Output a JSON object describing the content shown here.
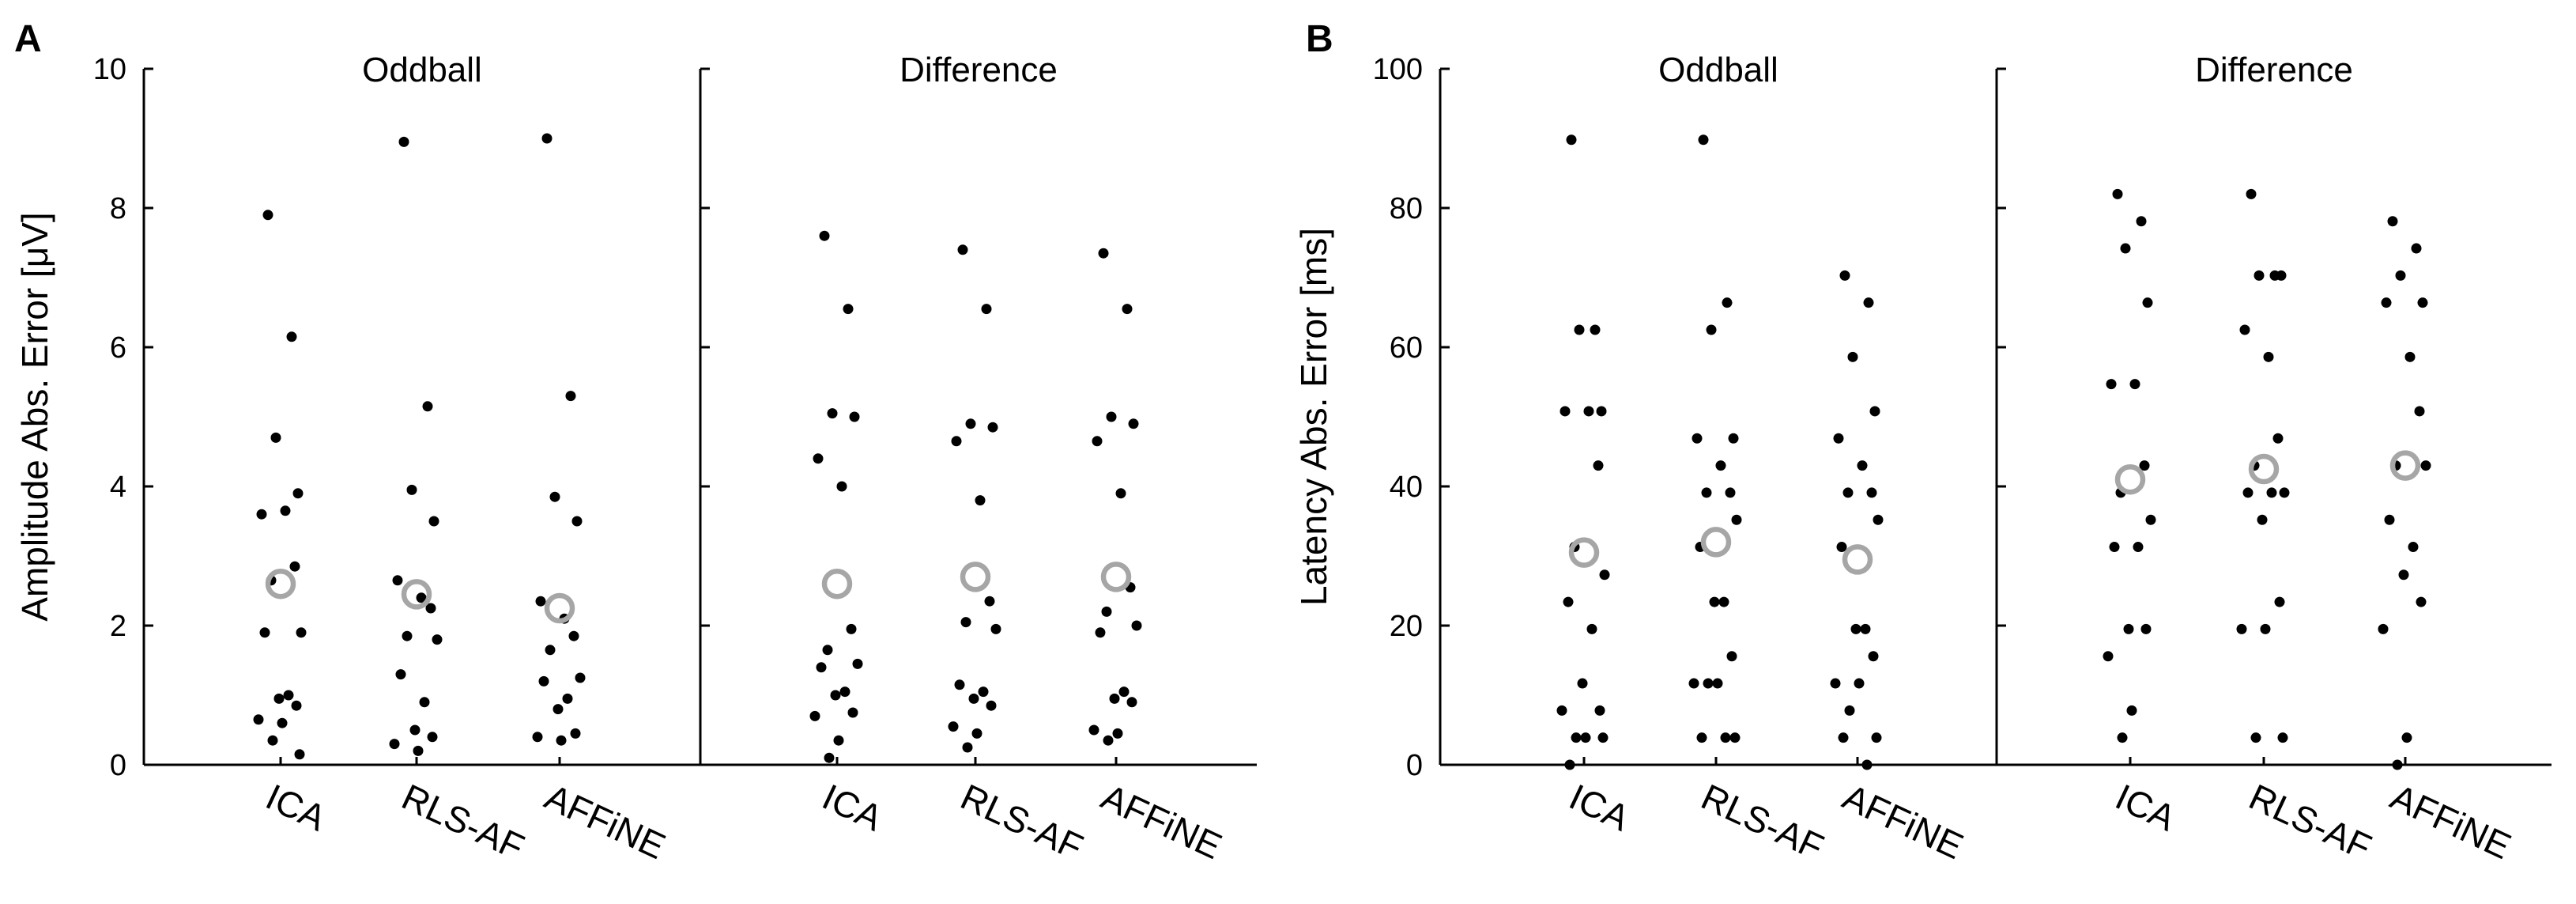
{
  "colors": {
    "individual": "#000000",
    "median": "#a6a6a6",
    "axis": "#000000"
  },
  "chart_data": [
    {
      "type": "scatter",
      "panel_label": "A",
      "ylabel": "Amplitude Abs. Error [μV]",
      "ylim": [
        0,
        10
      ],
      "yticks": [
        "0",
        "2",
        "4",
        "6",
        "8",
        "10"
      ],
      "categories": [
        "ICA",
        "RLS-AF",
        "AFFiNE"
      ],
      "subplots": [
        {
          "title": "Oddball",
          "series": [
            {
              "name": "ICA",
              "values": [
                7.9,
                6.15,
                4.7,
                3.9,
                3.6,
                3.65,
                2.85,
                2.65,
                1.9,
                1.9,
                1.0,
                0.95,
                0.85,
                0.65,
                0.6,
                0.35,
                0.15
              ],
              "median": 2.6
            },
            {
              "name": "RLS-AF",
              "values": [
                8.95,
                5.15,
                3.95,
                3.5,
                2.65,
                2.4,
                2.25,
                1.85,
                1.8,
                1.3,
                0.9,
                0.5,
                0.4,
                0.3,
                0.2
              ],
              "median": 2.45
            },
            {
              "name": "AFFiNE",
              "values": [
                9.0,
                5.3,
                3.85,
                3.5,
                2.35,
                2.1,
                1.85,
                1.65,
                1.25,
                1.2,
                0.95,
                0.8,
                0.45,
                0.4,
                0.35
              ],
              "median": 2.25
            }
          ]
        },
        {
          "title": "Difference",
          "series": [
            {
              "name": "ICA",
              "values": [
                7.6,
                6.55,
                5.05,
                5.0,
                4.4,
                4.0,
                1.95,
                1.65,
                1.45,
                1.4,
                1.05,
                1.0,
                0.75,
                0.7,
                0.35,
                0.1
              ],
              "median": 2.6
            },
            {
              "name": "RLS-AF",
              "values": [
                7.4,
                6.55,
                4.9,
                4.85,
                4.65,
                3.8,
                2.35,
                2.05,
                1.95,
                1.15,
                1.05,
                0.95,
                0.85,
                0.55,
                0.45,
                0.25
              ],
              "median": 2.7
            },
            {
              "name": "AFFiNE",
              "values": [
                7.35,
                6.55,
                5.0,
                4.9,
                4.65,
                3.9,
                2.55,
                2.2,
                2.0,
                1.9,
                1.05,
                0.95,
                0.9,
                0.5,
                0.45,
                0.35
              ],
              "median": 2.7
            }
          ]
        }
      ]
    },
    {
      "type": "scatter",
      "panel_label": "B",
      "ylabel": "Latency Abs. Error [ms]",
      "ylim": [
        0,
        100
      ],
      "yticks": [
        "0",
        "20",
        "40",
        "60",
        "80",
        "100"
      ],
      "categories": [
        "ICA",
        "RLS-AF",
        "AFFiNE"
      ],
      "subplots": [
        {
          "title": "Oddball",
          "series": [
            {
              "name": "ICA",
              "values": [
                89.8,
                62.5,
                62.5,
                50.8,
                50.8,
                50.8,
                43.0,
                31.3,
                27.3,
                23.4,
                19.5,
                11.7,
                7.8,
                7.8,
                3.9,
                3.9,
                3.9,
                0.0
              ],
              "median": 30.5
            },
            {
              "name": "RLS-AF",
              "values": [
                89.8,
                66.4,
                62.5,
                46.9,
                46.9,
                43.0,
                39.1,
                39.1,
                35.2,
                31.3,
                23.4,
                23.4,
                15.6,
                11.7,
                11.7,
                11.7,
                3.9,
                3.9,
                3.9
              ],
              "median": 32.0
            },
            {
              "name": "AFFiNE",
              "values": [
                70.3,
                66.4,
                58.6,
                50.8,
                46.9,
                43.0,
                39.1,
                39.1,
                35.2,
                31.3,
                19.5,
                19.5,
                15.6,
                11.7,
                11.7,
                7.8,
                3.9,
                3.9,
                0.0
              ],
              "median": 29.5
            }
          ]
        },
        {
          "title": "Difference",
          "series": [
            {
              "name": "ICA",
              "values": [
                82.0,
                78.1,
                74.2,
                66.4,
                54.7,
                54.7,
                43.0,
                39.1,
                35.2,
                31.3,
                31.3,
                19.5,
                19.5,
                15.6,
                7.8,
                3.9
              ],
              "median": 41.0
            },
            {
              "name": "RLS-AF",
              "values": [
                82.0,
                70.3,
                70.3,
                70.3,
                62.5,
                58.6,
                46.9,
                43.0,
                39.1,
                39.1,
                39.1,
                35.2,
                23.4,
                19.5,
                19.5,
                3.9,
                3.9
              ],
              "median": 42.5
            },
            {
              "name": "AFFiNE",
              "values": [
                78.1,
                74.2,
                70.3,
                66.4,
                66.4,
                58.6,
                50.8,
                43.0,
                43.0,
                35.2,
                31.3,
                27.3,
                23.4,
                19.5,
                3.9,
                0.0
              ],
              "median": 43.0
            }
          ]
        }
      ]
    }
  ]
}
